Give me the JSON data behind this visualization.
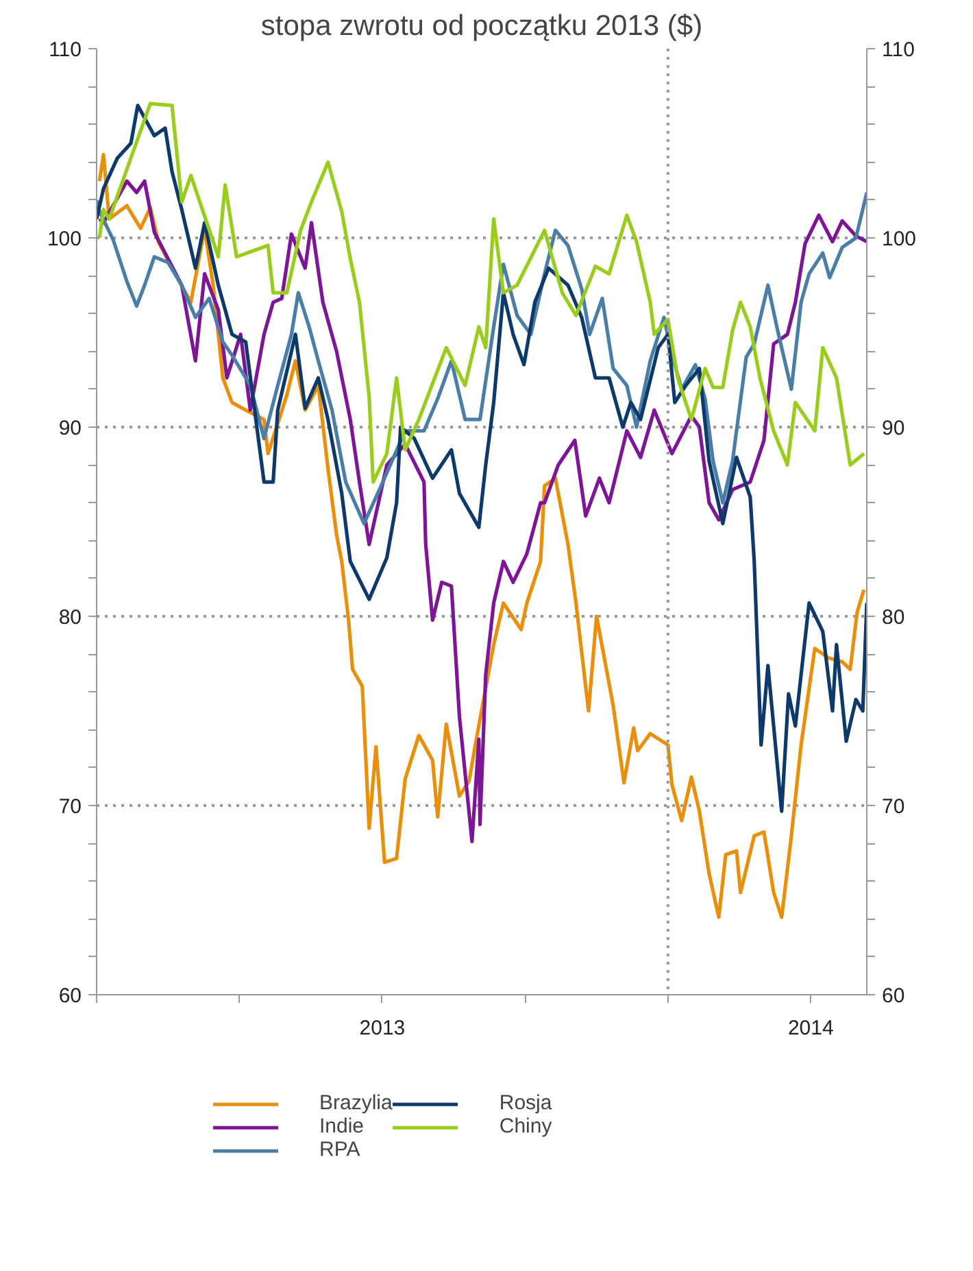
{
  "chart_data": {
    "type": "line",
    "title": "stopa zwrotu od początku 2013 ($)",
    "xlim": [
      2013.0,
      2014.348
    ],
    "xticks": [
      {
        "value": 2013.0,
        "label": null
      },
      {
        "value": 2013.25,
        "label": null
      },
      {
        "value": 2013.5,
        "label": "2013"
      },
      {
        "value": 2013.75,
        "label": null
      },
      {
        "value": 2014.0,
        "label": null
      },
      {
        "value": 2014.25,
        "label": "2014"
      }
    ],
    "ylim": [
      60,
      110
    ],
    "yticks": [
      60,
      {
        "value": 62,
        "label": null
      },
      {
        "value": 64,
        "label": null
      },
      {
        "value": 66,
        "label": null
      },
      {
        "value": 68,
        "label": null
      },
      70,
      {
        "value": 72,
        "label": null
      },
      {
        "value": 74,
        "label": null
      },
      {
        "value": 76,
        "label": null
      },
      {
        "value": 78,
        "label": null
      },
      80,
      {
        "value": 82,
        "label": null
      },
      {
        "value": 84,
        "label": null
      },
      {
        "value": 86,
        "label": null
      },
      {
        "value": 88,
        "label": null
      },
      90,
      {
        "value": 92,
        "label": null
      },
      {
        "value": 94,
        "label": null
      },
      {
        "value": 96,
        "label": null
      },
      {
        "value": 98,
        "label": null
      },
      100,
      {
        "value": 102,
        "label": null
      },
      {
        "value": 104,
        "label": null
      },
      {
        "value": 106,
        "label": null
      },
      {
        "value": 108,
        "label": null
      },
      110
    ],
    "y2lim": [
      60,
      110
    ],
    "y2ticks": [
      60,
      {
        "value": 62,
        "label": null
      },
      {
        "value": 64,
        "label": null
      },
      {
        "value": 66,
        "label": null
      },
      {
        "value": 68,
        "label": null
      },
      70,
      {
        "value": 72,
        "label": null
      },
      {
        "value": 74,
        "label": null
      },
      {
        "value": 76,
        "label": null
      },
      {
        "value": 78,
        "label": null
      },
      80,
      {
        "value": 82,
        "label": null
      },
      {
        "value": 84,
        "label": null
      },
      {
        "value": 86,
        "label": null
      },
      {
        "value": 88,
        "label": null
      },
      90,
      {
        "value": 92,
        "label": null
      },
      {
        "value": 94,
        "label": null
      },
      {
        "value": 96,
        "label": null
      },
      {
        "value": 98,
        "label": null
      },
      100,
      {
        "value": 102,
        "label": null
      },
      {
        "value": 104,
        "label": null
      },
      {
        "value": 106,
        "label": null
      },
      {
        "value": 108,
        "label": null
      },
      110
    ],
    "grid": "y",
    "legend": "bottom",
    "marker": "none",
    "line_style": "solid",
    "ref_lines": [
      {
        "axis": "x",
        "value": 2014.0,
        "label": null,
        "color": "#999999",
        "line_style": "dotted"
      }
    ],
    "series": [
      {
        "name": "Brazylia",
        "color": "#e8900c",
        "x": [
          2013.005,
          2013.012,
          2013.022,
          2013.053,
          2013.077,
          2013.094,
          2013.108,
          2013.141,
          2013.165,
          2013.189,
          2013.204,
          2013.221,
          2013.237,
          2013.261,
          2013.293,
          2013.3,
          2013.333,
          2013.348,
          2013.365,
          2013.388,
          2013.405,
          2013.42,
          2013.429,
          2013.441,
          2013.448,
          2013.465,
          2013.477,
          2013.489,
          2013.504,
          2013.525,
          2013.54,
          2013.564,
          2013.588,
          2013.597,
          2013.612,
          2013.635,
          2013.652,
          2013.664,
          2013.695,
          2013.712,
          2013.743,
          2013.753,
          2013.777,
          2013.784,
          2013.803,
          2013.825,
          2013.839,
          2013.861,
          2013.875,
          2013.904,
          2013.923,
          2013.94,
          2013.947,
          2013.969,
          2014.0,
          2014.007,
          2014.024,
          2014.041,
          2014.055,
          2014.072,
          2014.089,
          2014.101,
          2014.12,
          2014.127,
          2014.151,
          2014.168,
          2014.185,
          2014.199,
          2014.216,
          2014.233,
          2014.257,
          2014.281,
          2014.305,
          2014.319,
          2014.331,
          2014.343
        ],
        "values": [
          103.0,
          104.4,
          101.0,
          101.7,
          100.5,
          101.6,
          99.8,
          97.9,
          96.6,
          100.5,
          97.5,
          92.6,
          91.3,
          90.9,
          90.4,
          88.6,
          91.7,
          93.5,
          90.9,
          92.2,
          87.8,
          84.3,
          82.9,
          79.8,
          77.2,
          76.3,
          68.8,
          73.1,
          67.0,
          67.2,
          71.4,
          73.7,
          72.4,
          69.4,
          74.3,
          70.5,
          71.3,
          73.4,
          78.5,
          80.7,
          79.3,
          80.7,
          82.9,
          86.9,
          87.3,
          83.8,
          80.7,
          75.0,
          80.0,
          75.3,
          71.2,
          74.1,
          72.9,
          73.8,
          73.2,
          71.1,
          69.2,
          71.5,
          69.7,
          66.4,
          64.1,
          67.4,
          67.6,
          65.4,
          68.4,
          68.6,
          65.4,
          64.1,
          68.4,
          73.2,
          78.3,
          77.8,
          77.6,
          77.2,
          80.2,
          81.4
        ]
      },
      {
        "name": "Indie",
        "color": "#7e1496",
        "x": [
          2013.005,
          2013.012,
          2013.053,
          2013.07,
          2013.084,
          2013.101,
          2013.125,
          2013.149,
          2013.173,
          2013.189,
          2013.213,
          2013.228,
          2013.252,
          2013.269,
          2013.293,
          2013.309,
          2013.324,
          2013.341,
          2013.365,
          2013.376,
          2013.396,
          2013.42,
          2013.444,
          2013.46,
          2013.477,
          2013.508,
          2013.54,
          2013.573,
          2013.576,
          2013.588,
          2013.604,
          2013.621,
          2013.635,
          2013.657,
          2013.669,
          2013.671,
          2013.681,
          2013.695,
          2013.712,
          2013.729,
          2013.753,
          2013.777,
          2013.784,
          2013.808,
          2013.837,
          2013.856,
          2013.88,
          2013.897,
          2013.928,
          2013.952,
          2013.976,
          2014.007,
          2014.041,
          2014.055,
          2014.072,
          2014.089,
          2014.113,
          2014.144,
          2014.168,
          2014.185,
          2014.209,
          2014.223,
          2014.24,
          2014.264,
          2014.288,
          2014.305,
          2014.329,
          2014.348
        ],
        "values": [
          101.0,
          100.8,
          103.0,
          102.4,
          103.0,
          100.3,
          98.9,
          97.5,
          93.5,
          98.1,
          96.2,
          92.6,
          94.9,
          90.9,
          94.9,
          96.6,
          96.8,
          100.2,
          98.4,
          100.8,
          96.6,
          94.0,
          90.4,
          87.1,
          83.8,
          88.0,
          89.1,
          87.1,
          83.8,
          79.8,
          81.8,
          81.6,
          74.7,
          68.1,
          73.5,
          69.0,
          76.9,
          80.7,
          82.9,
          81.8,
          83.3,
          86.0,
          86.0,
          88.0,
          89.3,
          85.3,
          87.3,
          86.0,
          89.8,
          88.4,
          90.9,
          88.6,
          90.6,
          90.0,
          86.0,
          85.1,
          86.7,
          87.1,
          89.3,
          94.4,
          94.9,
          96.6,
          99.7,
          101.2,
          99.8,
          100.9,
          100.1,
          99.8
        ]
      },
      {
        "name": "RPA",
        "color": "#4a7ea6",
        "x": [
          2013.0,
          2013.005,
          2013.029,
          2013.053,
          2013.07,
          2013.084,
          2013.101,
          2013.125,
          2013.149,
          2013.173,
          2013.197,
          2013.221,
          2013.237,
          2013.269,
          2013.293,
          2013.317,
          2013.341,
          2013.353,
          2013.372,
          2013.388,
          2013.412,
          2013.436,
          2013.468,
          2013.501,
          2013.54,
          2013.573,
          2013.597,
          2013.621,
          2013.645,
          2013.669,
          2013.671,
          2013.695,
          2013.712,
          2013.736,
          2013.76,
          2013.784,
          2013.803,
          2013.825,
          2013.849,
          2013.863,
          2013.885,
          2013.904,
          2013.928,
          2013.945,
          2013.969,
          2013.993,
          2014.007,
          2014.024,
          2014.048,
          2014.065,
          2014.079,
          2014.096,
          2014.113,
          2014.137,
          2014.151,
          2014.175,
          2014.192,
          2014.216,
          2014.233,
          2014.247,
          2014.271,
          2014.283,
          2014.305,
          2014.329,
          2014.348
        ],
        "values": [
          102.0,
          101.4,
          99.9,
          97.7,
          96.4,
          97.5,
          99.0,
          98.7,
          97.5,
          95.8,
          96.8,
          94.5,
          93.8,
          92.2,
          89.4,
          92.2,
          94.9,
          97.1,
          95.3,
          93.5,
          90.9,
          87.1,
          84.9,
          87.1,
          89.8,
          89.8,
          91.5,
          93.5,
          90.4,
          90.4,
          90.4,
          95.3,
          98.6,
          95.9,
          94.9,
          98.1,
          100.4,
          99.6,
          97.3,
          94.9,
          96.8,
          93.1,
          92.2,
          90.0,
          93.5,
          95.8,
          93.8,
          92.0,
          93.3,
          91.5,
          88.2,
          86.0,
          88.2,
          93.7,
          94.4,
          97.5,
          95.1,
          92.0,
          96.6,
          98.1,
          99.2,
          97.9,
          99.5,
          100.0,
          102.4
        ]
      },
      {
        "name": "Rosja",
        "color": "#0e3a6b",
        "x": [
          2013.0,
          2013.012,
          2013.036,
          2013.06,
          2013.072,
          2013.101,
          2013.12,
          2013.132,
          2013.149,
          2013.173,
          2013.189,
          2013.213,
          2013.237,
          2013.261,
          2013.293,
          2013.309,
          2013.317,
          2013.348,
          2013.365,
          2013.388,
          2013.405,
          2013.429,
          2013.444,
          2013.477,
          2013.508,
          2013.525,
          2013.532,
          2013.556,
          2013.588,
          2013.621,
          2013.635,
          2013.669,
          2013.681,
          2013.695,
          2013.712,
          2013.729,
          2013.748,
          2013.767,
          2013.791,
          2013.825,
          2013.849,
          2013.873,
          2013.897,
          2013.921,
          2013.935,
          2013.952,
          2013.983,
          2014.0,
          2014.012,
          2014.031,
          2014.055,
          2014.072,
          2014.096,
          2014.12,
          2014.144,
          2014.151,
          2014.163,
          2014.175,
          2014.199,
          2014.211,
          2014.223,
          2014.247,
          2014.271,
          2014.288,
          2014.295,
          2014.312,
          2014.329,
          2014.341,
          2014.348
        ],
        "values": [
          101.0,
          102.6,
          104.2,
          105.0,
          107.0,
          105.4,
          105.8,
          103.5,
          101.5,
          98.4,
          100.8,
          97.5,
          94.9,
          94.5,
          87.1,
          87.1,
          90.9,
          94.9,
          91.0,
          92.6,
          90.4,
          86.5,
          82.9,
          80.9,
          83.1,
          86.0,
          90.0,
          89.4,
          87.3,
          88.8,
          86.5,
          84.7,
          88.0,
          91.3,
          97.1,
          94.9,
          93.3,
          96.6,
          98.4,
          97.5,
          95.8,
          92.6,
          92.6,
          90.0,
          91.3,
          90.4,
          94.2,
          94.9,
          91.3,
          92.2,
          93.1,
          88.2,
          84.9,
          88.4,
          86.3,
          82.9,
          73.2,
          77.4,
          69.7,
          75.9,
          74.2,
          80.7,
          79.2,
          75.0,
          78.5,
          73.4,
          75.6,
          75.0,
          80.7
        ]
      },
      {
        "name": "Chiny",
        "color": "#99cc1c",
        "x": [
          2013.005,
          2013.012,
          2013.022,
          2013.094,
          2013.132,
          2013.149,
          2013.165,
          2013.213,
          2013.225,
          2013.245,
          2013.3,
          2013.309,
          2013.333,
          2013.357,
          2013.376,
          2013.405,
          2013.429,
          2013.444,
          2013.46,
          2013.477,
          2013.484,
          2013.508,
          2013.525,
          2013.54,
          2013.564,
          2013.612,
          2013.645,
          2013.669,
          2013.681,
          2013.695,
          2013.712,
          2013.736,
          2013.784,
          2013.815,
          2013.839,
          2013.873,
          2013.897,
          2013.928,
          2013.945,
          2013.969,
          2013.976,
          2014.0,
          2014.017,
          2014.041,
          2014.065,
          2014.079,
          2014.096,
          2014.113,
          2014.127,
          2014.144,
          2014.161,
          2014.185,
          2014.209,
          2014.223,
          2014.257,
          2014.271,
          2014.295,
          2014.319,
          2014.343
        ],
        "values": [
          100.0,
          101.5,
          101.0,
          107.1,
          107.0,
          101.9,
          103.3,
          99.0,
          102.8,
          99.0,
          99.6,
          97.1,
          97.1,
          100.4,
          101.9,
          104.0,
          101.4,
          98.9,
          96.6,
          91.6,
          87.1,
          88.6,
          92.6,
          88.8,
          90.4,
          94.2,
          92.2,
          95.3,
          94.2,
          101.0,
          97.1,
          97.5,
          100.4,
          97.1,
          95.9,
          98.5,
          98.1,
          101.2,
          99.8,
          96.6,
          94.9,
          95.7,
          92.6,
          90.4,
          93.1,
          92.1,
          92.1,
          95.1,
          96.6,
          95.3,
          92.6,
          89.8,
          88.0,
          91.3,
          89.8,
          94.2,
          92.6,
          88.0,
          88.6
        ]
      }
    ]
  }
}
